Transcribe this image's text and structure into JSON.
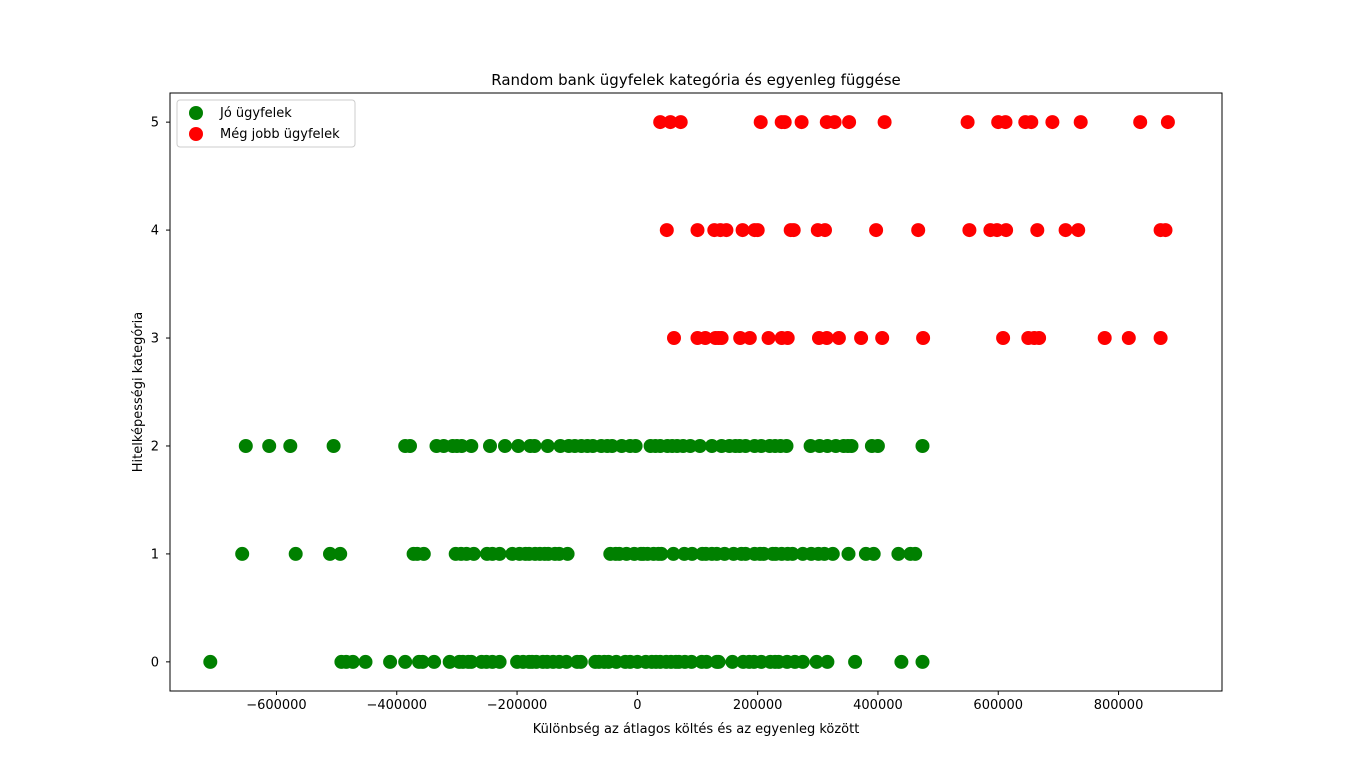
{
  "chart_data": {
    "type": "scatter",
    "title": "Random bank ügyfelek kategória és egyenleg függése",
    "xlabel": "Különbség az átlagos költés és az egyenleg között",
    "ylabel": "Hitelképességi kategória",
    "xlim": [
      -777000,
      972000
    ],
    "ylim": [
      -0.27,
      5.27
    ],
    "xticks": [
      -600000,
      -400000,
      -200000,
      0,
      200000,
      400000,
      600000,
      800000
    ],
    "xtick_labels": [
      "−600000",
      "−400000",
      "−200000",
      "0",
      "200000",
      "400000",
      "600000",
      "800000"
    ],
    "yticks": [
      0,
      1,
      2,
      3,
      4,
      5
    ],
    "ytick_labels": [
      "0",
      "1",
      "2",
      "3",
      "4",
      "5"
    ],
    "grid": false,
    "legend_position": "upper-left",
    "series": [
      {
        "name": "Jó ügyfelek",
        "color": "#008000",
        "points": [
          [
            -710000,
            0
          ],
          [
            -492000,
            0
          ],
          [
            -484000,
            0
          ],
          [
            -473000,
            0
          ],
          [
            -452000,
            0
          ],
          [
            -411000,
            0
          ],
          [
            -386000,
            0
          ],
          [
            -363000,
            0
          ],
          [
            -357000,
            0
          ],
          [
            -338000,
            0
          ],
          [
            -312000,
            0
          ],
          [
            -296000,
            0
          ],
          [
            -290000,
            0
          ],
          [
            -281000,
            0
          ],
          [
            -276000,
            0
          ],
          [
            -259000,
            0
          ],
          [
            -251000,
            0
          ],
          [
            -241000,
            0
          ],
          [
            -229000,
            0
          ],
          [
            -200000,
            0
          ],
          [
            -190000,
            0
          ],
          [
            -180000,
            0
          ],
          [
            -175000,
            0
          ],
          [
            -168000,
            0
          ],
          [
            -157000,
            0
          ],
          [
            -150000,
            0
          ],
          [
            -140000,
            0
          ],
          [
            -130000,
            0
          ],
          [
            -118000,
            0
          ],
          [
            -100000,
            0
          ],
          [
            -94000,
            0
          ],
          [
            -70000,
            0
          ],
          [
            -64000,
            0
          ],
          [
            -55000,
            0
          ],
          [
            -48000,
            0
          ],
          [
            -35000,
            0
          ],
          [
            -20000,
            0
          ],
          [
            -12000,
            0
          ],
          [
            0,
            0
          ],
          [
            14000,
            0
          ],
          [
            24000,
            0
          ],
          [
            31000,
            0
          ],
          [
            38000,
            0
          ],
          [
            48000,
            0
          ],
          [
            56000,
            0
          ],
          [
            64000,
            0
          ],
          [
            69000,
            0
          ],
          [
            79000,
            0
          ],
          [
            90000,
            0
          ],
          [
            107000,
            0
          ],
          [
            115000,
            0
          ],
          [
            132000,
            0
          ],
          [
            135000,
            0
          ],
          [
            158000,
            0
          ],
          [
            176000,
            0
          ],
          [
            186000,
            0
          ],
          [
            194000,
            0
          ],
          [
            206000,
            0
          ],
          [
            221000,
            0
          ],
          [
            229000,
            0
          ],
          [
            235000,
            0
          ],
          [
            249000,
            0
          ],
          [
            262000,
            0
          ],
          [
            275000,
            0
          ],
          [
            298000,
            0
          ],
          [
            316000,
            0
          ],
          [
            362000,
            0
          ],
          [
            439000,
            0
          ],
          [
            474000,
            0
          ],
          [
            -657000,
            1
          ],
          [
            -568000,
            1
          ],
          [
            -511000,
            1
          ],
          [
            -494000,
            1
          ],
          [
            -372000,
            1
          ],
          [
            -366000,
            1
          ],
          [
            -355000,
            1
          ],
          [
            -302000,
            1
          ],
          [
            -293000,
            1
          ],
          [
            -284000,
            1
          ],
          [
            -272000,
            1
          ],
          [
            -250000,
            1
          ],
          [
            -241000,
            1
          ],
          [
            -229000,
            1
          ],
          [
            -208000,
            1
          ],
          [
            -196000,
            1
          ],
          [
            -186000,
            1
          ],
          [
            -180000,
            1
          ],
          [
            -170000,
            1
          ],
          [
            -162000,
            1
          ],
          [
            -154000,
            1
          ],
          [
            -148000,
            1
          ],
          [
            -137000,
            1
          ],
          [
            -130000,
            1
          ],
          [
            -116000,
            1
          ],
          [
            -45000,
            1
          ],
          [
            -36000,
            1
          ],
          [
            -30000,
            1
          ],
          [
            -18000,
            1
          ],
          [
            -5000,
            1
          ],
          [
            6000,
            1
          ],
          [
            10000,
            1
          ],
          [
            17000,
            1
          ],
          [
            27000,
            1
          ],
          [
            35000,
            1
          ],
          [
            40000,
            1
          ],
          [
            60000,
            1
          ],
          [
            78000,
            1
          ],
          [
            91000,
            1
          ],
          [
            108000,
            1
          ],
          [
            114000,
            1
          ],
          [
            124000,
            1
          ],
          [
            132000,
            1
          ],
          [
            145000,
            1
          ],
          [
            160000,
            1
          ],
          [
            173000,
            1
          ],
          [
            180000,
            1
          ],
          [
            195000,
            1
          ],
          [
            204000,
            1
          ],
          [
            210000,
            1
          ],
          [
            225000,
            1
          ],
          [
            230000,
            1
          ],
          [
            240000,
            1
          ],
          [
            250000,
            1
          ],
          [
            258000,
            1
          ],
          [
            275000,
            1
          ],
          [
            289000,
            1
          ],
          [
            301000,
            1
          ],
          [
            311000,
            1
          ],
          [
            325000,
            1
          ],
          [
            351000,
            1
          ],
          [
            380000,
            1
          ],
          [
            393000,
            1
          ],
          [
            434000,
            1
          ],
          [
            454000,
            1
          ],
          [
            462000,
            1
          ],
          [
            -651000,
            2
          ],
          [
            -612000,
            2
          ],
          [
            -577000,
            2
          ],
          [
            -505000,
            2
          ],
          [
            -386000,
            2
          ],
          [
            -378000,
            2
          ],
          [
            -334000,
            2
          ],
          [
            -322000,
            2
          ],
          [
            -307000,
            2
          ],
          [
            -300000,
            2
          ],
          [
            -292000,
            2
          ],
          [
            -276000,
            2
          ],
          [
            -245000,
            2
          ],
          [
            -220000,
            2
          ],
          [
            -198000,
            2
          ],
          [
            -178000,
            2
          ],
          [
            -171000,
            2
          ],
          [
            -149000,
            2
          ],
          [
            -128000,
            2
          ],
          [
            -114000,
            2
          ],
          [
            -104000,
            2
          ],
          [
            -93000,
            2
          ],
          [
            -83000,
            2
          ],
          [
            -74000,
            2
          ],
          [
            -60000,
            2
          ],
          [
            -50000,
            2
          ],
          [
            -42000,
            2
          ],
          [
            -26000,
            2
          ],
          [
            -12000,
            2
          ],
          [
            -3000,
            2
          ],
          [
            22000,
            2
          ],
          [
            30000,
            2
          ],
          [
            38000,
            2
          ],
          [
            50000,
            2
          ],
          [
            58000,
            2
          ],
          [
            66000,
            2
          ],
          [
            76000,
            2
          ],
          [
            88000,
            2
          ],
          [
            104000,
            2
          ],
          [
            124000,
            2
          ],
          [
            140000,
            2
          ],
          [
            153000,
            2
          ],
          [
            163000,
            2
          ],
          [
            170000,
            2
          ],
          [
            180000,
            2
          ],
          [
            195000,
            2
          ],
          [
            206000,
            2
          ],
          [
            220000,
            2
          ],
          [
            229000,
            2
          ],
          [
            238000,
            2
          ],
          [
            248000,
            2
          ],
          [
            288000,
            2
          ],
          [
            303000,
            2
          ],
          [
            316000,
            2
          ],
          [
            330000,
            2
          ],
          [
            343000,
            2
          ],
          [
            350000,
            2
          ],
          [
            356000,
            2
          ],
          [
            390000,
            2
          ],
          [
            400000,
            2
          ],
          [
            474000,
            2
          ]
        ]
      },
      {
        "name": "Még jobb ügyfelek",
        "color": "#ff0000",
        "points": [
          [
            61000,
            3
          ],
          [
            100000,
            3
          ],
          [
            113000,
            3
          ],
          [
            130000,
            3
          ],
          [
            135000,
            3
          ],
          [
            140000,
            3
          ],
          [
            171000,
            3
          ],
          [
            187000,
            3
          ],
          [
            218000,
            3
          ],
          [
            240000,
            3
          ],
          [
            250000,
            3
          ],
          [
            302000,
            3
          ],
          [
            315000,
            3
          ],
          [
            335000,
            3
          ],
          [
            372000,
            3
          ],
          [
            407000,
            3
          ],
          [
            475000,
            3
          ],
          [
            608000,
            3
          ],
          [
            650000,
            3
          ],
          [
            660000,
            3
          ],
          [
            668000,
            3
          ],
          [
            777000,
            3
          ],
          [
            817000,
            3
          ],
          [
            870000,
            3
          ],
          [
            49000,
            4
          ],
          [
            100000,
            4
          ],
          [
            128000,
            4
          ],
          [
            138000,
            4
          ],
          [
            148000,
            4
          ],
          [
            175000,
            4
          ],
          [
            195000,
            4
          ],
          [
            200000,
            4
          ],
          [
            255000,
            4
          ],
          [
            260000,
            4
          ],
          [
            300000,
            4
          ],
          [
            312000,
            4
          ],
          [
            397000,
            4
          ],
          [
            467000,
            4
          ],
          [
            552000,
            4
          ],
          [
            587000,
            4
          ],
          [
            598000,
            4
          ],
          [
            613000,
            4
          ],
          [
            665000,
            4
          ],
          [
            712000,
            4
          ],
          [
            733000,
            4
          ],
          [
            870000,
            4
          ],
          [
            878000,
            4
          ],
          [
            38000,
            5
          ],
          [
            55000,
            5
          ],
          [
            72000,
            5
          ],
          [
            205000,
            5
          ],
          [
            240000,
            5
          ],
          [
            245000,
            5
          ],
          [
            273000,
            5
          ],
          [
            315000,
            5
          ],
          [
            328000,
            5
          ],
          [
            352000,
            5
          ],
          [
            411000,
            5
          ],
          [
            549000,
            5
          ],
          [
            600000,
            5
          ],
          [
            612000,
            5
          ],
          [
            645000,
            5
          ],
          [
            655000,
            5
          ],
          [
            690000,
            5
          ],
          [
            737000,
            5
          ],
          [
            836000,
            5
          ],
          [
            882000,
            5
          ]
        ]
      }
    ]
  }
}
